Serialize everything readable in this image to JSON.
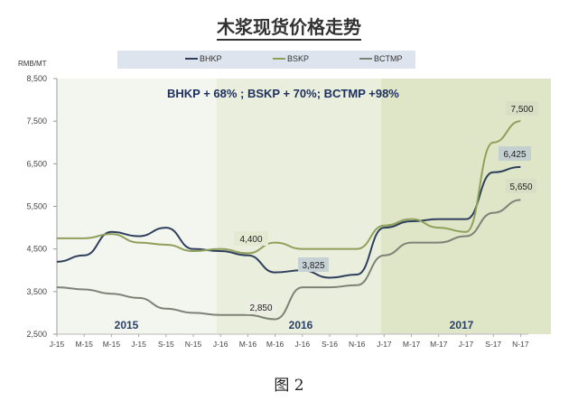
{
  "title": "木浆现货价格走势",
  "unit_label": "RMB/MT",
  "caption": "图 2",
  "annotation": "BHKP + 68% ; BSKP + 70%; BCTMP +98%",
  "legend": [
    {
      "label": "BHKP",
      "color": "#2e3f5c"
    },
    {
      "label": "BSKP",
      "color": "#8ea05a"
    },
    {
      "label": "BCTMP",
      "color": "#7d8277"
    }
  ],
  "year_labels": [
    "2015",
    "2016",
    "2017"
  ],
  "data_labels": [
    "4,400",
    "3,825",
    "2,850",
    "7,500",
    "6,425",
    "5,650"
  ],
  "chart_data": {
    "type": "line",
    "title": "木浆现货价格走势",
    "xlabel": "",
    "ylabel": "RMB/MT",
    "ylim": [
      2500,
      8500
    ],
    "yticks": [
      "8,500",
      "7,500",
      "6,500",
      "5,500",
      "4,500",
      "3,500",
      "2,500"
    ],
    "xticks": [
      "J-15",
      "M-15",
      "M-15",
      "J-15",
      "S-15",
      "N-15",
      "J-16",
      "M-16",
      "M-16",
      "J-16",
      "S-16",
      "N-16",
      "J-17",
      "M-17",
      "M-17",
      "J-17",
      "S-17",
      "N-17"
    ],
    "grid": false,
    "legend_position": "top",
    "annotation": "BHKP + 68% ; BSKP + 70%; BCTMP +98%",
    "x": [
      "Jan-15",
      "Mar-15",
      "May-15",
      "Jul-15",
      "Sep-15",
      "Nov-15",
      "Jan-16",
      "Mar-16",
      "May-16",
      "Jul-16",
      "Sep-16",
      "Nov-16",
      "Jan-17",
      "Mar-17",
      "May-17",
      "Jul-17",
      "Sep-17",
      "Nov-17"
    ],
    "series": [
      {
        "name": "BHKP",
        "values": [
          4200,
          4350,
          4900,
          4800,
          5000,
          4500,
          4450,
          4350,
          3950,
          4000,
          3825,
          3900,
          5000,
          5150,
          5200,
          5200,
          6300,
          6425
        ]
      },
      {
        "name": "BSKP",
        "values": [
          4750,
          4750,
          4850,
          4650,
          4600,
          4450,
          4500,
          4400,
          4650,
          4500,
          4500,
          4500,
          5050,
          5200,
          5000,
          4900,
          7000,
          7500
        ]
      },
      {
        "name": "BCTMP",
        "values": [
          3600,
          3550,
          3450,
          3350,
          3100,
          3000,
          2950,
          2950,
          2850,
          3600,
          3600,
          3650,
          4350,
          4650,
          4650,
          4800,
          5350,
          5650
        ]
      }
    ],
    "point_labels": [
      {
        "series": "BSKP",
        "x": "Mar-16",
        "value": "4,400"
      },
      {
        "series": "BHKP",
        "x": "Sep-16",
        "value": "3,825"
      },
      {
        "series": "BCTMP",
        "x": "Apr-16",
        "value": "2,850"
      },
      {
        "series": "BSKP",
        "x": "Nov-17",
        "value": "7,500"
      },
      {
        "series": "BHKP",
        "x": "Nov-17",
        "value": "6,425"
      },
      {
        "series": "BCTMP",
        "x": "Nov-17",
        "value": "5,650"
      }
    ],
    "background_periods": [
      "2015",
      "2016",
      "2017"
    ]
  }
}
